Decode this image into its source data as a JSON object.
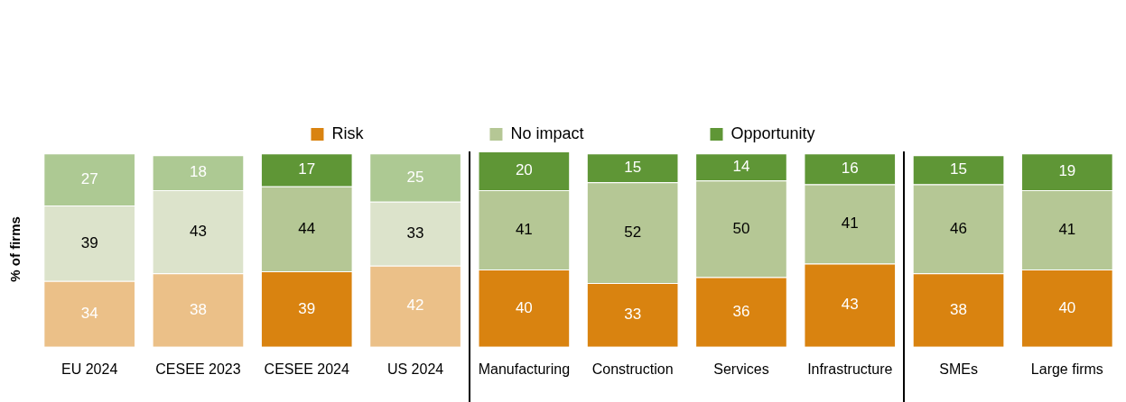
{
  "chart_data": {
    "type": "bar",
    "stacked": true,
    "ylabel": "% of firms",
    "legend": "top",
    "data_labels": true,
    "grid": false,
    "categories": [
      "EU 2024",
      "CESEE 2023",
      "CESEE 2024",
      "US 2024",
      "Manufacturing",
      "Construction",
      "Services",
      "Infrastructure",
      "SMEs",
      "Large firms"
    ],
    "series": [
      {
        "name": "Risk",
        "color": "#d98310",
        "colors": [
          "#ebc088",
          "#ebc088",
          "#d98310",
          "#ebc088",
          "#d98310",
          "#d98310",
          "#d98310",
          "#d98310",
          "#d98310",
          "#d98310"
        ],
        "values": [
          34,
          38,
          39,
          42,
          40,
          33,
          36,
          43,
          38,
          40
        ]
      },
      {
        "name": "No impact",
        "color": "#b5c795",
        "colors": [
          "#dce3cb",
          "#dce3cb",
          "#b5c795",
          "#dce3cb",
          "#b5c795",
          "#b5c795",
          "#b5c795",
          "#b5c795",
          "#b5c795",
          "#b5c795"
        ],
        "values": [
          39,
          43,
          44,
          33,
          41,
          52,
          50,
          41,
          46,
          41
        ]
      },
      {
        "name": "Opportunity",
        "color": "#5f9636",
        "colors": [
          "#adc993",
          "#adc993",
          "#5f9636",
          "#adc993",
          "#5f9636",
          "#5f9636",
          "#5f9636",
          "#5f9636",
          "#5f9636",
          "#5f9636"
        ],
        "values": [
          27,
          18,
          17,
          25,
          20,
          15,
          14,
          16,
          15,
          19
        ]
      }
    ]
  }
}
